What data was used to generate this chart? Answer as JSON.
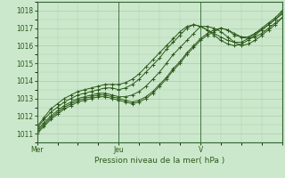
{
  "bg_color": "#cce8cc",
  "grid_color": "#aaccaa",
  "line_color": "#2d5a1b",
  "marker_color": "#2d5a1b",
  "axis_label_color": "#2d5a1b",
  "tick_label_color": "#2d5a1b",
  "border_color": "#336633",
  "xlabel": "Pression niveau de la mer( hPa )",
  "ylim": [
    1010.5,
    1018.5
  ],
  "yticks": [
    1011,
    1012,
    1013,
    1014,
    1015,
    1016,
    1017,
    1018
  ],
  "xlim": [
    0,
    72
  ],
  "day_ticks": [
    0,
    24,
    48,
    72
  ],
  "day_labels": [
    "Mer",
    "Jeu",
    "V",
    ""
  ],
  "xlabel_fontsize": 6.5,
  "series": [
    {
      "x": [
        0,
        2,
        4,
        6,
        8,
        10,
        12,
        14,
        16,
        18,
        20,
        22,
        24,
        26,
        28,
        30,
        32,
        34,
        36,
        38,
        40,
        42,
        44,
        46,
        48,
        50,
        52,
        54,
        56,
        58,
        60,
        62,
        64,
        66,
        68,
        70,
        72
      ],
      "y": [
        1011.1,
        1011.5,
        1011.9,
        1012.2,
        1012.5,
        1012.7,
        1012.9,
        1013.0,
        1013.1,
        1013.2,
        1013.2,
        1013.1,
        1013.0,
        1012.9,
        1012.8,
        1012.9,
        1013.1,
        1013.4,
        1013.8,
        1014.2,
        1014.7,
        1015.1,
        1015.6,
        1016.0,
        1016.4,
        1016.7,
        1016.9,
        1017.0,
        1016.9,
        1016.6,
        1016.5,
        1016.5,
        1016.7,
        1016.9,
        1017.2,
        1017.5,
        1017.8
      ]
    },
    {
      "x": [
        0,
        2,
        4,
        6,
        8,
        10,
        12,
        14,
        16,
        18,
        20,
        22,
        24,
        26,
        28,
        30,
        32,
        34,
        36,
        38,
        40,
        42,
        44,
        46,
        48,
        50,
        52,
        54,
        56,
        58,
        60,
        62,
        64,
        66,
        68,
        70,
        72
      ],
      "y": [
        1011.2,
        1011.6,
        1012.0,
        1012.3,
        1012.6,
        1012.8,
        1013.0,
        1013.1,
        1013.2,
        1013.3,
        1013.3,
        1013.2,
        1013.1,
        1013.1,
        1013.2,
        1013.4,
        1013.7,
        1014.1,
        1014.5,
        1015.0,
        1015.5,
        1015.9,
        1016.3,
        1016.7,
        1017.1,
        1017.1,
        1017.0,
        1016.8,
        1016.5,
        1016.2,
        1016.0,
        1016.1,
        1016.3,
        1016.6,
        1016.9,
        1017.2,
        1017.6
      ]
    },
    {
      "x": [
        0,
        2,
        4,
        6,
        8,
        10,
        12,
        14,
        16,
        18,
        20,
        22,
        24,
        26,
        28,
        30,
        32,
        34,
        36,
        38,
        40,
        42,
        44,
        46,
        48,
        50,
        52,
        54,
        56,
        58,
        60,
        62,
        64,
        66,
        68,
        70,
        72
      ],
      "y": [
        1011.0,
        1011.4,
        1011.8,
        1012.1,
        1012.4,
        1012.6,
        1012.8,
        1012.9,
        1013.0,
        1013.1,
        1013.1,
        1013.0,
        1012.9,
        1012.8,
        1012.7,
        1012.8,
        1013.0,
        1013.3,
        1013.7,
        1014.1,
        1014.6,
        1015.0,
        1015.5,
        1015.9,
        1016.3,
        1016.6,
        1016.8,
        1017.0,
        1016.9,
        1016.7,
        1016.5,
        1016.4,
        1016.5,
        1016.7,
        1017.0,
        1017.3,
        1017.6
      ]
    },
    {
      "x": [
        0,
        2,
        4,
        6,
        8,
        10,
        12,
        14,
        16,
        18,
        20,
        22,
        24,
        26,
        28,
        30,
        32,
        34,
        36,
        38,
        40,
        42,
        44,
        46,
        48,
        50,
        52,
        54,
        56,
        58,
        60,
        62,
        64,
        66,
        68,
        70,
        72
      ],
      "y": [
        1011.3,
        1011.8,
        1012.2,
        1012.5,
        1012.8,
        1013.0,
        1013.2,
        1013.3,
        1013.4,
        1013.5,
        1013.6,
        1013.6,
        1013.5,
        1013.6,
        1013.8,
        1014.1,
        1014.5,
        1014.9,
        1015.3,
        1015.8,
        1016.2,
        1016.6,
        1017.0,
        1017.2,
        1017.1,
        1016.9,
        1016.6,
        1016.3,
        1016.1,
        1016.0,
        1016.1,
        1016.3,
        1016.6,
        1016.9,
        1017.2,
        1017.5,
        1017.9
      ]
    },
    {
      "x": [
        0,
        2,
        4,
        6,
        8,
        10,
        12,
        14,
        16,
        18,
        20,
        22,
        24,
        26,
        28,
        30,
        32,
        34,
        36,
        38,
        40,
        42,
        44,
        46,
        48,
        50,
        52,
        54,
        56,
        58,
        60,
        62,
        64,
        66,
        68,
        70,
        72
      ],
      "y": [
        1011.4,
        1011.9,
        1012.4,
        1012.7,
        1013.0,
        1013.2,
        1013.4,
        1013.5,
        1013.6,
        1013.7,
        1013.8,
        1013.8,
        1013.8,
        1013.9,
        1014.1,
        1014.4,
        1014.8,
        1015.2,
        1015.6,
        1016.0,
        1016.4,
        1016.8,
        1017.1,
        1017.2,
        1017.1,
        1016.9,
        1016.7,
        1016.5,
        1016.3,
        1016.2,
        1016.2,
        1016.4,
        1016.7,
        1017.0,
        1017.3,
        1017.6,
        1018.0
      ]
    }
  ]
}
